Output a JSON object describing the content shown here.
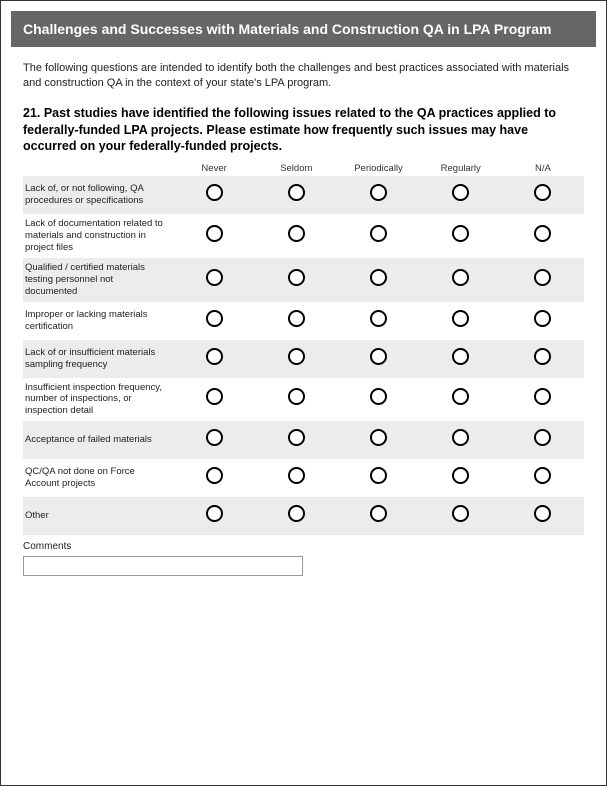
{
  "header": {
    "title": "Challenges and Successes with Materials and Construction QA in LPA Program"
  },
  "intro": "The following questions are intended to identify both the challenges and best practices associated with materials and construction QA in the context of your state's LPA program.",
  "question": "21. Past studies have identified the following issues related to the QA practices applied to federally-funded LPA projects. Please estimate how frequently such issues may have occurred on your federally-funded projects.",
  "columns": [
    "Never",
    "Seldom",
    "Periodically",
    "Regularly",
    "N/A"
  ],
  "rows": [
    {
      "label": "Lack of, or not following, QA procedures or specifications",
      "shaded": true
    },
    {
      "label": "Lack of documentation related to materials and construction in project files",
      "shaded": false
    },
    {
      "label": "Qualified / certified materials testing personnel not documented",
      "shaded": true
    },
    {
      "label": "Improper or lacking materials certification",
      "shaded": false
    },
    {
      "label": "Lack of or insufficient materials sampling frequency",
      "shaded": true
    },
    {
      "label": "Insufficient inspection frequency, number of inspections, or inspection detail",
      "shaded": false
    },
    {
      "label": "Acceptance of failed materials",
      "shaded": true
    },
    {
      "label": "QC/QA not done on Force Account projects",
      "shaded": false
    },
    {
      "label": "Other",
      "shaded": true
    }
  ],
  "comments": {
    "label": "Comments",
    "value": ""
  }
}
